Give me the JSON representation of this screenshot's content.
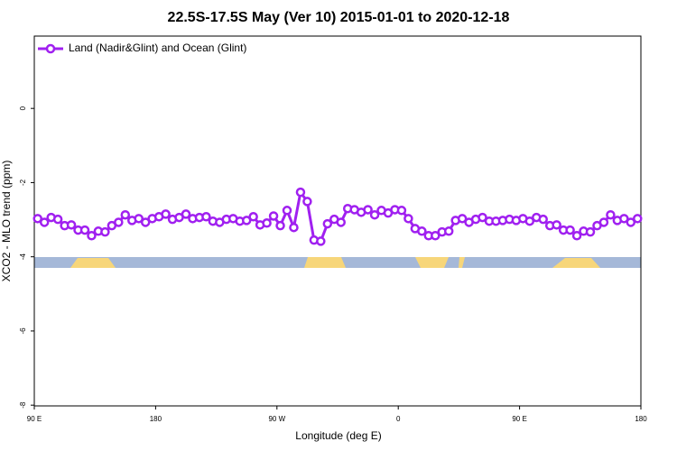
{
  "chart_data": {
    "type": "line",
    "title": "22.5S-17.5S May (Ver 10)   2015-01-01 to 2020-12-18",
    "xlabel": "Longitude (deg E)",
    "ylabel": "XCO2 - MLO trend (ppm)",
    "x": [
      92.5,
      97.5,
      102.5,
      107.5,
      112.5,
      117.5,
      122.5,
      127.5,
      132.5,
      137.5,
      142.5,
      147.5,
      152.5,
      157.5,
      162.5,
      167.5,
      172.5,
      177.5,
      182.5,
      187.5,
      192.5,
      197.5,
      202.5,
      207.5,
      212.5,
      217.5,
      222.5,
      227.5,
      232.5,
      237.5,
      242.5,
      247.5,
      252.5,
      257.5,
      262.5,
      267.5,
      272.5,
      277.5,
      282.5,
      287.5,
      292.5,
      297.5,
      302.5,
      307.5,
      312.5,
      317.5,
      322.5,
      327.5,
      332.5,
      337.5,
      342.5,
      347.5,
      352.5,
      357.5,
      362.5,
      367.5,
      372.5,
      377.5,
      382.5,
      387.5,
      392.5,
      397.5,
      402.5,
      407.5,
      412.5,
      417.5,
      422.5,
      427.5,
      432.5,
      437.5,
      442.5,
      447.5,
      452.5,
      457.5,
      462.5,
      467.5,
      472.5,
      477.5,
      482.5,
      487.5,
      492.5,
      497.5,
      502.5,
      507.5,
      512.5,
      517.5,
      522.5,
      527.5,
      532.5,
      537.5
    ],
    "series": [
      {
        "name": "Land (Nadir&Glint) and Ocean (Glint)",
        "color": "#a020f0",
        "values": [
          -2.97,
          -3.07,
          -2.94,
          -2.99,
          -3.16,
          -3.14,
          -3.28,
          -3.28,
          -3.43,
          -3.31,
          -3.33,
          -3.16,
          -3.07,
          -2.87,
          -3.02,
          -2.97,
          -3.07,
          -2.97,
          -2.92,
          -2.85,
          -2.99,
          -2.94,
          -2.85,
          -2.97,
          -2.94,
          -2.92,
          -3.04,
          -3.07,
          -2.99,
          -2.97,
          -3.04,
          -3.02,
          -2.92,
          -3.14,
          -3.09,
          -2.9,
          -3.16,
          -2.75,
          -3.21,
          -2.26,
          -2.51,
          -3.55,
          -3.58,
          -3.11,
          -2.99,
          -3.07,
          -2.7,
          -2.73,
          -2.8,
          -2.73,
          -2.87,
          -2.75,
          -2.82,
          -2.73,
          -2.75,
          -2.97,
          -3.24,
          -3.31,
          -3.43,
          -3.43,
          -3.33,
          -3.31,
          -3.02,
          -2.97,
          -3.07,
          -2.99,
          -2.94,
          -3.04,
          -3.04,
          -3.02,
          -2.99,
          -3.02,
          -2.97,
          -3.04,
          -2.94,
          -2.99,
          -3.16,
          -3.14,
          -3.28,
          -3.28,
          -3.43,
          -3.31,
          -3.33,
          -3.16,
          -3.07,
          -2.87,
          -3.02,
          -2.97,
          -3.07,
          -2.97
        ]
      }
    ],
    "xlim": [
      90,
      540
    ],
    "xticks": [
      {
        "value": 90,
        "label": "90 E"
      },
      180,
      {
        "value": 270,
        "label": "90 W"
      },
      {
        "value": 360,
        "label": "0"
      },
      {
        "value": 450,
        "label": "90 E"
      },
      {
        "value": 540,
        "label": "180"
      }
    ],
    "ylim": [
      -8.02,
      1.95
    ],
    "yticks": [
      -8,
      -6,
      -4,
      -2,
      0
    ],
    "legend": "top-left"
  }
}
